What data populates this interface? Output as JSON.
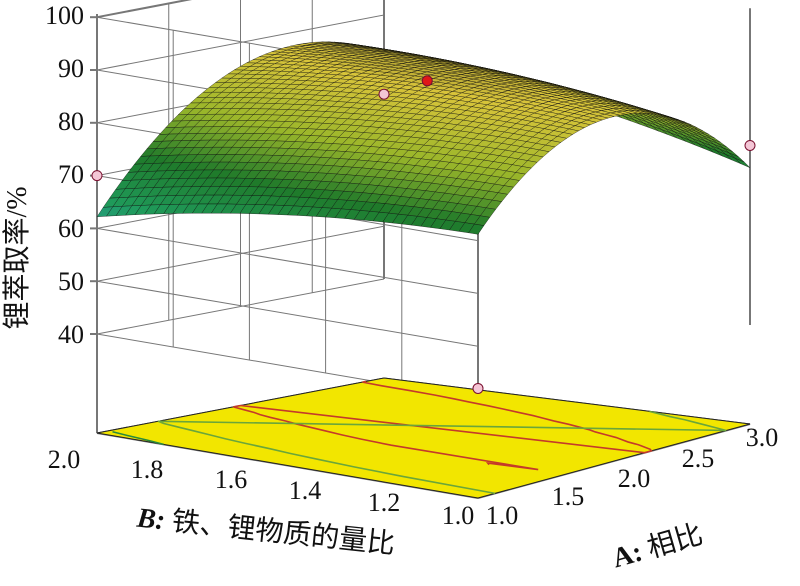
{
  "chart_data": {
    "type": "surface3d",
    "zlabel": "锂萃取率/%",
    "xlabel_prefix": "A:",
    "xlabel_text": " 相比",
    "ylabel_prefix": "B:",
    "ylabel_text": " 铁、锂物质的量比",
    "z_ticks": [
      "40",
      "50",
      "60",
      "70",
      "80",
      "90",
      "100"
    ],
    "x_ticks": [
      "1.0",
      "1.5",
      "2.0",
      "2.5",
      "3.0"
    ],
    "y_ticks": [
      "1.0",
      "1.2",
      "1.4",
      "1.6",
      "1.8",
      "2.0"
    ],
    "zlim": [
      40,
      100
    ],
    "xlim": [
      1.0,
      3.0
    ],
    "ylim": [
      1.0,
      2.0
    ],
    "corner_values": {
      "A1.0_B1.0": 42,
      "A1.0_B2.0": 70,
      "A3.0_B1.0": 74,
      "A3.0_B2.0": 75
    },
    "design_points": [
      {
        "A": 2.0,
        "B": 1.5,
        "z": 88
      },
      {
        "A": 1.0,
        "B": 1.0,
        "z": 42
      },
      {
        "A": 1.0,
        "B": 2.0,
        "z": 70
      },
      {
        "A": 3.0,
        "B": 1.0,
        "z": 74
      }
    ],
    "colormap": [
      "#2b0a5e",
      "#3b3aa0",
      "#2ea6c9",
      "#1f9a5a",
      "#1f7a2a",
      "#9ab62a",
      "#d8c43a",
      "#111111"
    ],
    "contour_color": "#f2e600"
  }
}
